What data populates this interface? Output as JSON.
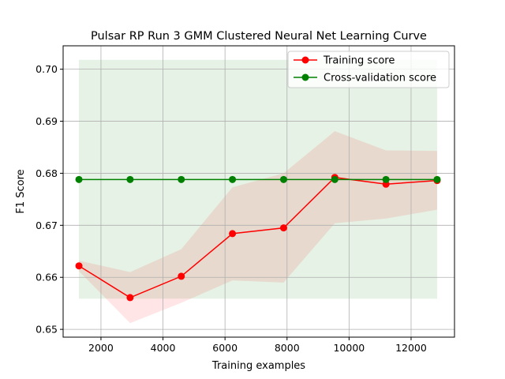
{
  "chart_data": {
    "type": "line",
    "title": "Pulsar RP Run 3 GMM Clustered Neural Net Learning Curve",
    "xlabel": "Training examples",
    "ylabel": "F1 Score",
    "xlim": [
      780,
      13400
    ],
    "ylim": [
      0.6485,
      0.7045
    ],
    "xticks": [
      2000,
      4000,
      6000,
      8000,
      10000,
      12000
    ],
    "yticks": [
      0.65,
      0.66,
      0.67,
      0.68,
      0.69,
      0.7
    ],
    "grid": true,
    "legend_position": "top-right",
    "x": [
      1290,
      2940,
      4590,
      6240,
      7890,
      9540,
      11190,
      12840
    ],
    "series": [
      {
        "name": "Training score",
        "color": "#ff0000",
        "values": [
          0.6622,
          0.6561,
          0.6602,
          0.6684,
          0.6695,
          0.6792,
          0.6779,
          0.6786
        ],
        "band_lower": [
          0.6612,
          0.6512,
          0.6551,
          0.6594,
          0.659,
          0.6704,
          0.6713,
          0.673
        ],
        "band_upper": [
          0.6632,
          0.661,
          0.6654,
          0.6773,
          0.68,
          0.6881,
          0.6844,
          0.6843
        ]
      },
      {
        "name": "Cross-validation score",
        "color": "#008000",
        "values": [
          0.6788,
          0.6788,
          0.6788,
          0.6788,
          0.6788,
          0.6788,
          0.6788,
          0.6788
        ],
        "band_lower": [
          0.6559,
          0.6559,
          0.6559,
          0.6559,
          0.6559,
          0.6559,
          0.6559,
          0.6559
        ],
        "band_upper": [
          0.7018,
          0.7018,
          0.7018,
          0.7018,
          0.7018,
          0.7018,
          0.7018,
          0.7018
        ]
      }
    ]
  }
}
